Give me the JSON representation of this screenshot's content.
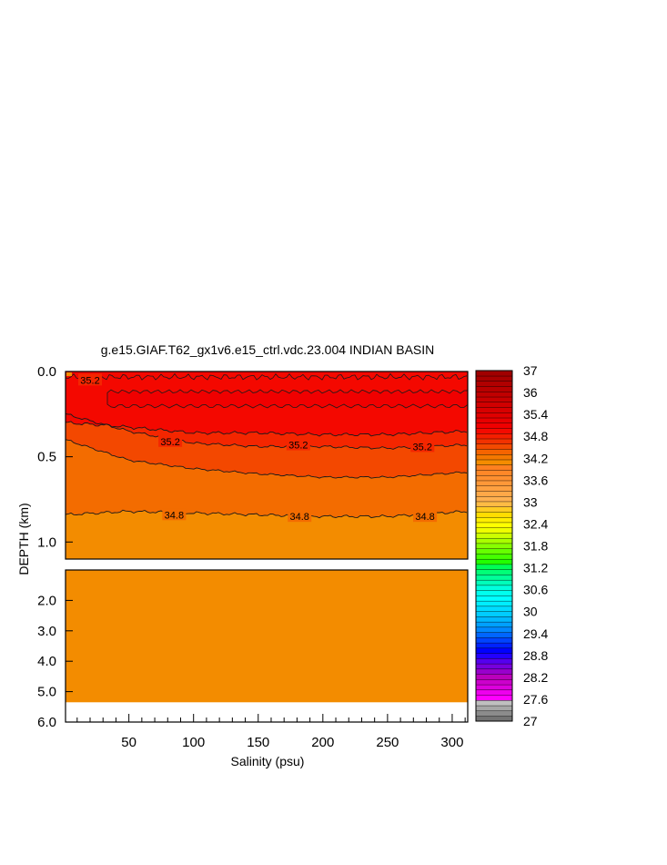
{
  "chart_data": {
    "type": "heatmap",
    "title": "g.e15.GIAF.T62_gx1v6.e15_ctrl.vdc.23.004 INDIAN BASIN",
    "xlabel": "Salinity (psu)",
    "ylabel": "DEPTH (km)",
    "x_range": [
      1,
      312
    ],
    "x_ticks": [
      50,
      100,
      150,
      200,
      250,
      300
    ],
    "x_tick_labels": [
      "50",
      "100",
      "150",
      "200",
      "250",
      "300"
    ],
    "upper_panel": {
      "y_range": [
        0.0,
        1.1
      ],
      "y_ticks": [
        0.0,
        0.5,
        1.0
      ],
      "y_tick_labels": [
        "0.0",
        "0.5",
        "1.0"
      ],
      "contour_lines": [
        {
          "level": 35.4,
          "x": [
            1,
            40,
            100,
            150,
            200,
            250,
            312
          ],
          "depth": [
            0.3,
            0.32,
            0.36,
            0.36,
            0.37,
            0.37,
            0.35
          ]
        },
        {
          "level": 35.2,
          "x": [
            1,
            50,
            100,
            150,
            200,
            250,
            312
          ],
          "depth": [
            0.25,
            0.35,
            0.42,
            0.44,
            0.44,
            0.45,
            0.43
          ]
        },
        {
          "level": 35.0,
          "x": [
            1,
            50,
            100,
            150,
            200,
            250,
            312
          ],
          "depth": [
            0.4,
            0.52,
            0.57,
            0.6,
            0.62,
            0.62,
            0.59
          ]
        },
        {
          "level": 34.8,
          "x": [
            1,
            50,
            100,
            150,
            200,
            250,
            312
          ],
          "depth": [
            0.84,
            0.82,
            0.83,
            0.84,
            0.85,
            0.85,
            0.82
          ]
        }
      ],
      "contour_labels": [
        {
          "text": "35.2",
          "x": 20,
          "depth": 0.05
        },
        {
          "text": "35.2",
          "x": 82,
          "depth": 0.41
        },
        {
          "text": "35.2",
          "x": 181,
          "depth": 0.43
        },
        {
          "text": "35.2",
          "x": 277,
          "depth": 0.44
        },
        {
          "text": "34.8",
          "x": 85,
          "depth": 0.84
        },
        {
          "text": "34.8",
          "x": 182,
          "depth": 0.85
        },
        {
          "text": "34.8",
          "x": 279,
          "depth": 0.85
        }
      ]
    },
    "lower_panel": {
      "y_range": [
        1.0,
        6.0
      ],
      "y_ticks": [
        2.0,
        3.0,
        4.0,
        5.0,
        6.0
      ],
      "y_tick_labels": [
        "2.0",
        "3.0",
        "4.0",
        "5.0",
        "6.0"
      ],
      "data_bottom_depth": 5.35
    },
    "colorbar": {
      "min": 27,
      "max": 37,
      "labels": [
        "37",
        "36",
        "35.4",
        "34.8",
        "34.2",
        "33.6",
        "33",
        "32.4",
        "31.8",
        "31.2",
        "30.6",
        "30",
        "29.4",
        "28.8",
        "28.2",
        "27.6",
        "27"
      ],
      "colors": [
        "#737373",
        "#8c8c8c",
        "#a6a6a6",
        "#bfbfbf",
        "#ff00ff",
        "#ee00ee",
        "#dd00dd",
        "#cc00cc",
        "#bb00bb",
        "#9900cc",
        "#7700dd",
        "#5500ee",
        "#2200ff",
        "#0000ff",
        "#0022ff",
        "#0044ff",
        "#0066ff",
        "#0088ff",
        "#00a0ff",
        "#00b8ff",
        "#00ccff",
        "#00dcff",
        "#00eeff",
        "#00ffff",
        "#00ffee",
        "#00ffdd",
        "#00ffbb",
        "#00ff99",
        "#00ff77",
        "#00ff55",
        "#22ff00",
        "#44ff00",
        "#66ff00",
        "#88ff00",
        "#aaff00",
        "#ccff00",
        "#eeff00",
        "#ffff00",
        "#ffee00",
        "#ffdd00",
        "#ffcc22",
        "#ffbb44",
        "#ffb050",
        "#ffa848",
        "#ffa040",
        "#ff9838",
        "#ff9030",
        "#ff8828",
        "#ff8020",
        "#f58c00",
        "#f47800",
        "#f56400",
        "#f34a00",
        "#f23200",
        "#f41e00",
        "#f40a00",
        "#f00000",
        "#e80000",
        "#e00000",
        "#d80000",
        "#d00000",
        "#c80000",
        "#c00000",
        "#b80000",
        "#b00000",
        "#a80000",
        "#a00000"
      ]
    },
    "fill_colors": {
      "upper_band_35_4": "#f40800",
      "band_35_2": "#f42600",
      "band_35_0": "#f34800",
      "band_34_8": "#f36c00",
      "deep": "#f38c00"
    }
  }
}
